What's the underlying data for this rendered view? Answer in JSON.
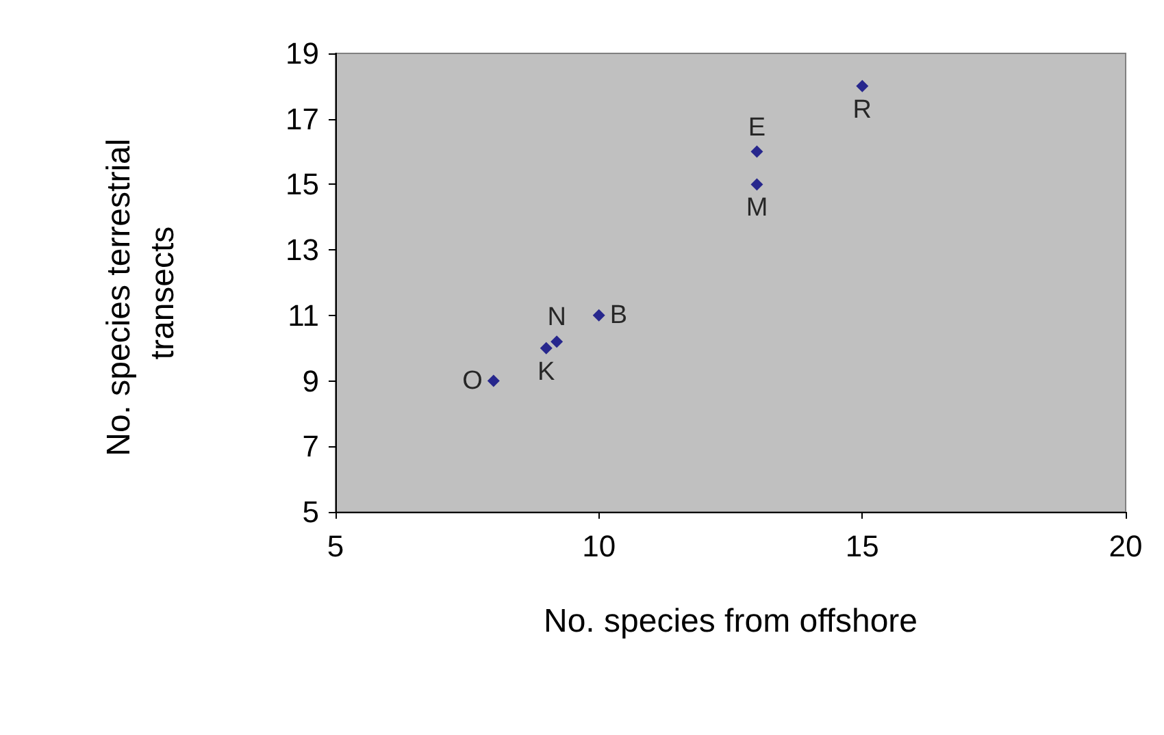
{
  "chart_data": {
    "type": "scatter",
    "xlabel": "No. species from offshore",
    "ylabel": "No. species terrestrial transects",
    "x": [
      8,
      9,
      9.2,
      10,
      13,
      13,
      15
    ],
    "values": [
      9,
      10,
      10.2,
      11,
      16,
      15,
      18
    ],
    "color": "#000080",
    "marker": "diamond",
    "grid": false,
    "xlim": [
      5,
      20
    ],
    "xticks": [
      5,
      10,
      15,
      20
    ],
    "ylim": [
      5,
      19
    ],
    "yticks": [
      5,
      7,
      9,
      11,
      13,
      15,
      17,
      19
    ],
    "annotations": [
      {
        "text": "O",
        "x": 8,
        "y": 9
      },
      {
        "text": "K",
        "x": 9,
        "y": 10
      },
      {
        "text": "N",
        "x": 9.2,
        "y": 10.2
      },
      {
        "text": "B",
        "x": 10,
        "y": 11
      },
      {
        "text": "E",
        "x": 13,
        "y": 16
      },
      {
        "text": "M",
        "x": 13,
        "y": 15
      },
      {
        "text": "R",
        "x": 15,
        "y": 18
      }
    ]
  }
}
